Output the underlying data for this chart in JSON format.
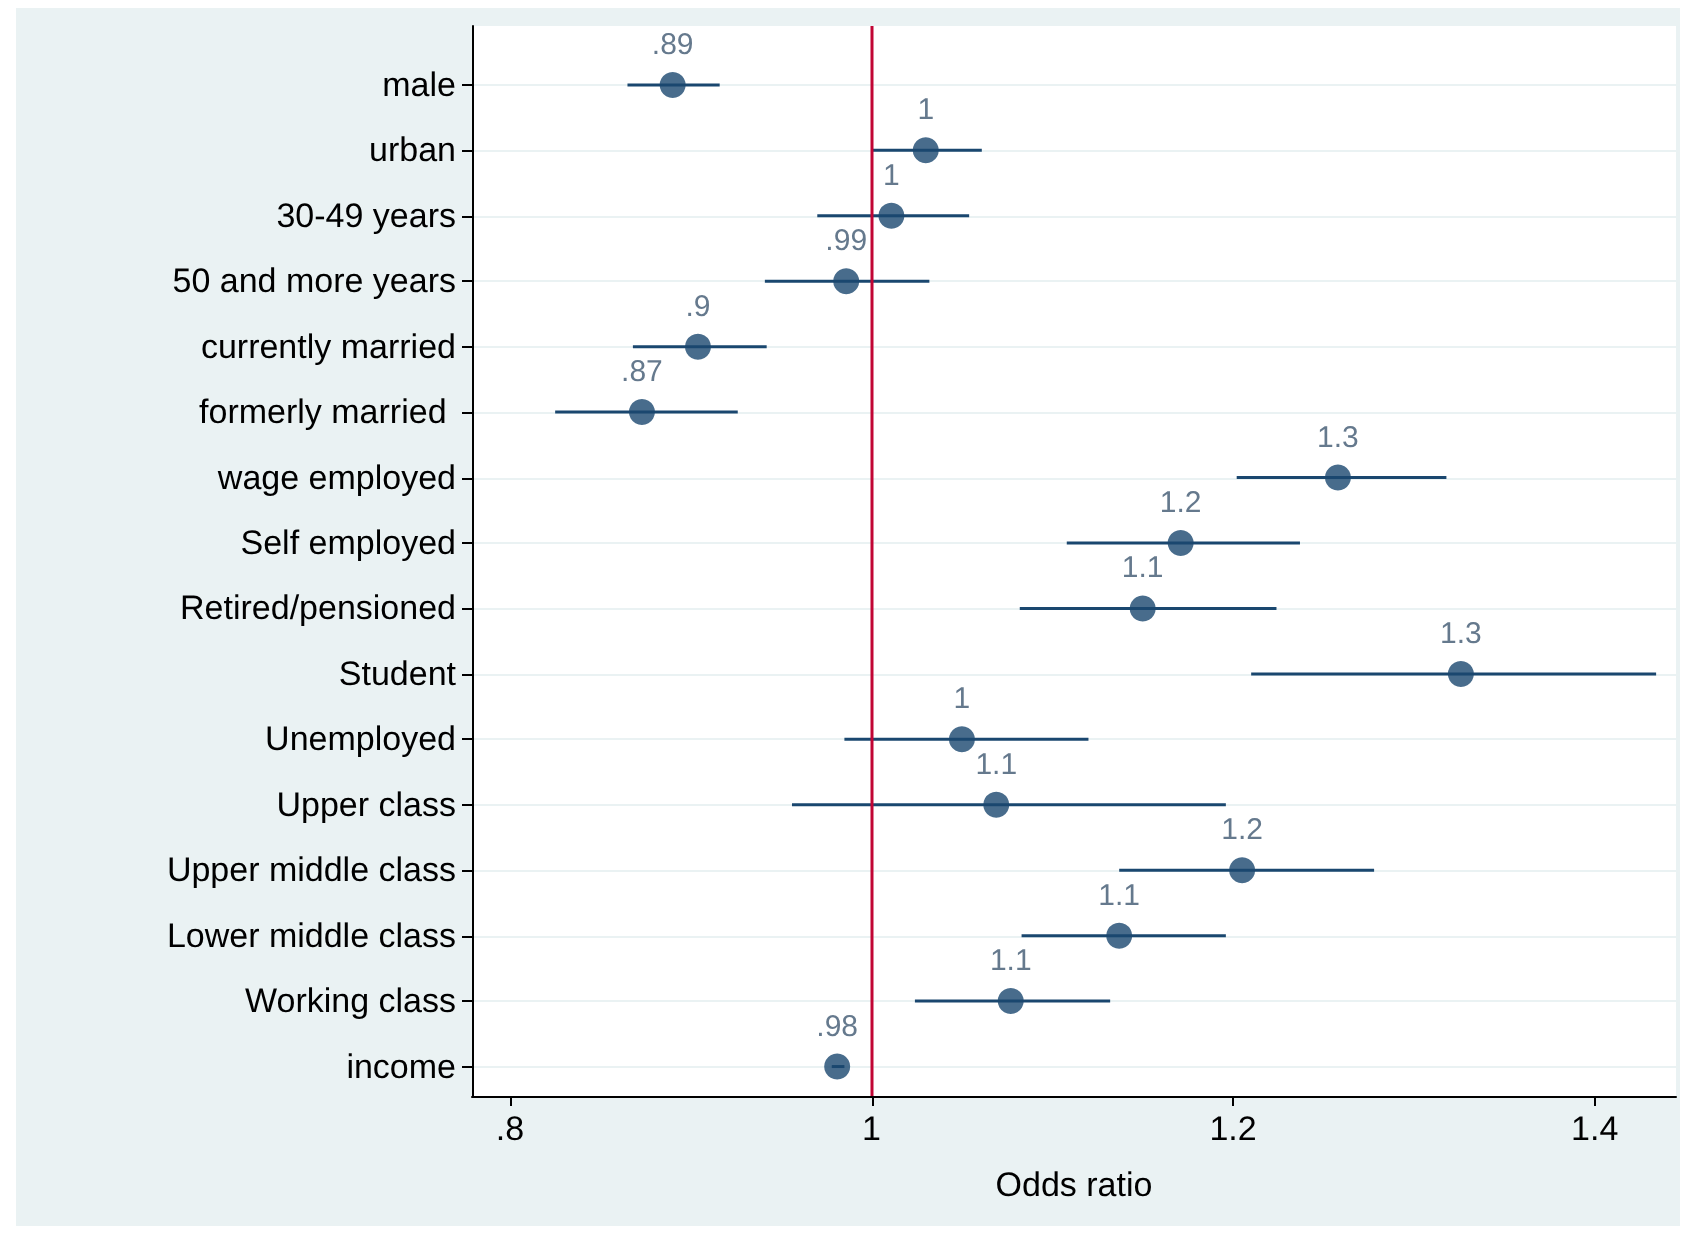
{
  "chart_data": {
    "type": "scatter",
    "orientation": "horizontal",
    "xlabel": "Odds ratio",
    "categories": [
      "male",
      "urban",
      "30-49 years",
      "50 and more years",
      "currently married",
      "formerly married ",
      "wage employed",
      "Self employed",
      "Retired/pensioned",
      "Student",
      "Unemployed",
      "Upper class",
      "Upper middle class",
      "Lower middle class",
      "Working class",
      "income"
    ],
    "values": [
      0.89,
      1.03,
      1.011,
      0.986,
      0.904,
      0.873,
      1.258,
      1.171,
      1.15,
      1.326,
      1.05,
      1.069,
      1.205,
      1.137,
      1.077,
      0.981
    ],
    "errors": [
      [
        0.865,
        0.916
      ],
      [
        1.0,
        1.061
      ],
      [
        0.97,
        1.054
      ],
      [
        0.941,
        1.032
      ],
      [
        0.868,
        0.942
      ],
      [
        0.825,
        0.926
      ],
      [
        1.202,
        1.318
      ],
      [
        1.108,
        1.237
      ],
      [
        1.082,
        1.224
      ],
      [
        1.21,
        1.434
      ],
      [
        0.985,
        1.12
      ],
      [
        0.956,
        1.196
      ],
      [
        1.137,
        1.278
      ],
      [
        1.083,
        1.196
      ],
      [
        1.024,
        1.132
      ],
      [
        0.978,
        0.985
      ]
    ],
    "value_labels": [
      ".89",
      "1",
      "1",
      ".99",
      ".9",
      ".87",
      "1.3",
      "1.2",
      "1.1",
      "1.3",
      "1",
      "1.1",
      "1.2",
      "1.1",
      "1.1",
      ".98"
    ],
    "color": "#1a476f",
    "marker": "circle",
    "grid": "y",
    "xlim": [
      0.779,
      1.445
    ],
    "xticks": [
      {
        "value": 0.8,
        "label": ".8"
      },
      {
        "value": 1,
        "label": "1"
      },
      {
        "value": 1.2,
        "label": "1.2"
      },
      {
        "value": 1.4,
        "label": "1.4"
      }
    ],
    "ref_lines": [
      {
        "axis": "x",
        "value": 1,
        "label": null,
        "color": "#c10534"
      }
    ]
  }
}
